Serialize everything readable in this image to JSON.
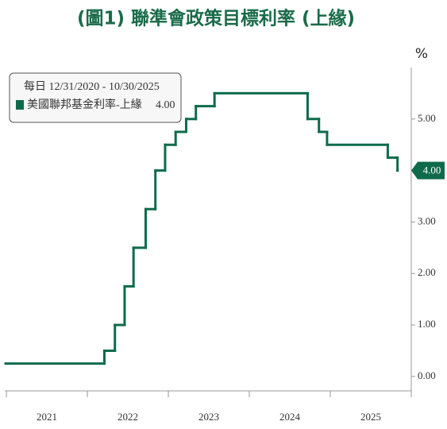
{
  "chart_data": {
    "type": "step",
    "title": "(圖1) 聯準會政策目標利率 (上緣)",
    "y_label": "%",
    "legend_title": "每日 12/31/2020 - 10/30/2025",
    "x": [
      2020.99,
      2022.21,
      2022.34,
      2022.46,
      2022.57,
      2022.72,
      2022.84,
      2022.96,
      2023.09,
      2023.22,
      2023.34,
      2023.57,
      2024.72,
      2024.86,
      2024.96,
      2025.71,
      2025.83
    ],
    "series": [
      {
        "name": "美國聯邦基金利率-上緣",
        "color": "#0d6b4b",
        "values": [
          0.25,
          0.5,
          1.0,
          1.75,
          2.5,
          3.25,
          4.0,
          4.5,
          4.75,
          5.0,
          5.25,
          5.5,
          5.0,
          4.75,
          4.5,
          4.25,
          4.0
        ],
        "value_labels": [
          null,
          null,
          null,
          null,
          null,
          null,
          null,
          null,
          null,
          null,
          null,
          null,
          null,
          null,
          null,
          null,
          "4.00"
        ]
      }
    ],
    "xlim": [
      2020.98,
      2026.0
    ],
    "xticks": [
      {
        "value": 2021.5,
        "label": "2021"
      },
      {
        "value": 2022.5,
        "label": "2022"
      },
      {
        "value": 2023.5,
        "label": "2023"
      },
      {
        "value": 2024.5,
        "label": "2024"
      },
      {
        "value": 2025.5,
        "label": "2025"
      }
    ],
    "ylim": [
      -0.28,
      6.0
    ],
    "yticks": [
      {
        "value": 0,
        "label": "0.00"
      },
      {
        "value": 1,
        "label": "1.00"
      },
      {
        "value": 2,
        "label": "2.00"
      },
      {
        "value": 3,
        "label": "3.00"
      },
      {
        "value": 4,
        "label": "4.00"
      },
      {
        "value": 5,
        "label": "5.00"
      }
    ]
  }
}
